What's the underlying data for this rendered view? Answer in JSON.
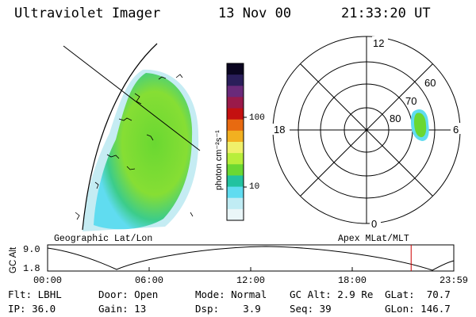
{
  "header": {
    "title": "Ultraviolet Imager",
    "date": "13 Nov 00",
    "time": "21:33:20 UT"
  },
  "geo_panel": {
    "label": "Geographic Lat/Lon"
  },
  "colorbar": {
    "unit_label": "photon cm⁻²s⁻¹",
    "ticks": [
      "100",
      "10"
    ],
    "colors": [
      "#0a0520",
      "#2a1e5a",
      "#6a2a7a",
      "#9a1a4a",
      "#c41010",
      "#e86a10",
      "#f2b020",
      "#f0f06a",
      "#b8ee3a",
      "#6ad832",
      "#22c2a0",
      "#60dcf0",
      "#c0ecf4",
      "#eaf6f8"
    ]
  },
  "polar_panel": {
    "label": "Apex MLat/MLT",
    "mlt_labels": {
      "top": "12",
      "left": "18",
      "right": "6",
      "bottom": "0"
    },
    "lat_labels": [
      "60",
      "70",
      "80"
    ]
  },
  "timeline": {
    "ylabel": "GC Alt",
    "y_ticks": [
      "9.0",
      "1.8"
    ],
    "x_ticks": [
      "00:00",
      "06:00",
      "12:00",
      "18:00",
      "23:59"
    ],
    "cursor_color": "#cc0000",
    "cursor_time_fraction": 0.895
  },
  "info": {
    "col1": [
      {
        "label": "Flt:",
        "value": "LBHL"
      },
      {
        "label": "IP:",
        "value": "36.0"
      }
    ],
    "col2": [
      {
        "label": "Door:",
        "value": "Open"
      },
      {
        "label": "Gain:",
        "value": "13"
      }
    ],
    "col3": [
      {
        "label": "Mode:",
        "value": "Normal"
      },
      {
        "label": "Dsp:",
        "value": "3.9"
      }
    ],
    "col4": [
      {
        "label": "GC Alt:",
        "value": "2.9 Re"
      },
      {
        "label": "Seq:",
        "value": "39"
      }
    ],
    "col5": [
      {
        "label": "GLat:",
        "value": "70.7"
      },
      {
        "label": "GLon:",
        "value": "146.7"
      }
    ]
  }
}
